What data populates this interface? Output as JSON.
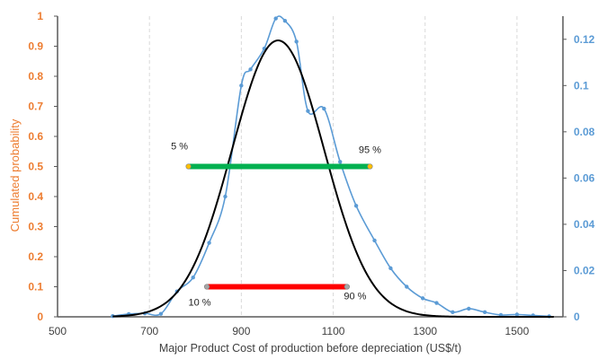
{
  "chart_data": {
    "type": "line",
    "xlabel": "Major Product Cost of production before depreciation (US$/t)",
    "ylabel_left": "Cumulated probability",
    "ylabel_right": "",
    "xlim": [
      500,
      1600
    ],
    "ylim_left": [
      0,
      1
    ],
    "ylim_right": [
      0,
      0.13
    ],
    "x_ticks": [
      "500",
      "700",
      "900",
      "1100",
      "1300",
      "1500"
    ],
    "y_left_ticks": [
      "0",
      "0.1",
      "0.2",
      "0.3",
      "0.4",
      "0.5",
      "0.6",
      "0.7",
      "0.8",
      "0.9",
      "1"
    ],
    "y_right_ticks": [
      "0",
      "0.02",
      "0.04",
      "0.06",
      "0.08",
      "0.1",
      "0.12"
    ],
    "grid": {
      "vertical": true,
      "horizontal": false,
      "style": "dashed"
    },
    "colors": {
      "histogram": "#5B9BD5",
      "fit": "#000000",
      "range_90": "#00B050",
      "range_80": "#FF0000",
      "left_axis": "#ED7D31",
      "right_axis": "#5B9BD5",
      "marker_yellow": "#FFC000",
      "marker_grey": "#A6A6A6"
    },
    "series": [
      {
        "axis": "right",
        "smooth": true,
        "x": [
          620,
          655,
          690,
          725,
          760,
          795,
          830,
          865,
          900,
          920,
          950,
          975,
          995,
          1020,
          1045,
          1080,
          1115,
          1150,
          1190,
          1225,
          1260,
          1295,
          1325,
          1360,
          1395,
          1430,
          1465,
          1500,
          1535,
          1570
        ],
        "values": [
          0.0003,
          0.0012,
          0.0015,
          0.0013,
          0.011,
          0.017,
          0.032,
          0.052,
          0.1,
          0.107,
          0.116,
          0.129,
          0.128,
          0.119,
          0.089,
          0.09,
          0.067,
          0.048,
          0.033,
          0.021,
          0.013,
          0.008,
          0.006,
          0.002,
          0.0035,
          0.002,
          0.0008,
          0.001,
          0.0006,
          0.0002
        ]
      },
      {
        "axis": "right",
        "smooth": true,
        "type": "normal-fit",
        "mean": 980,
        "sd": 100,
        "peak": 0.1195
      }
    ],
    "ranges": [
      {
        "y": 0.5,
        "x_start": 785,
        "x_end": 1180,
        "label_start": "5 %",
        "label_end": "95 %"
      },
      {
        "y": 0.1,
        "x_start": 825,
        "x_end": 1130,
        "label_start": "10 %",
        "label_end": "90 %"
      }
    ]
  }
}
